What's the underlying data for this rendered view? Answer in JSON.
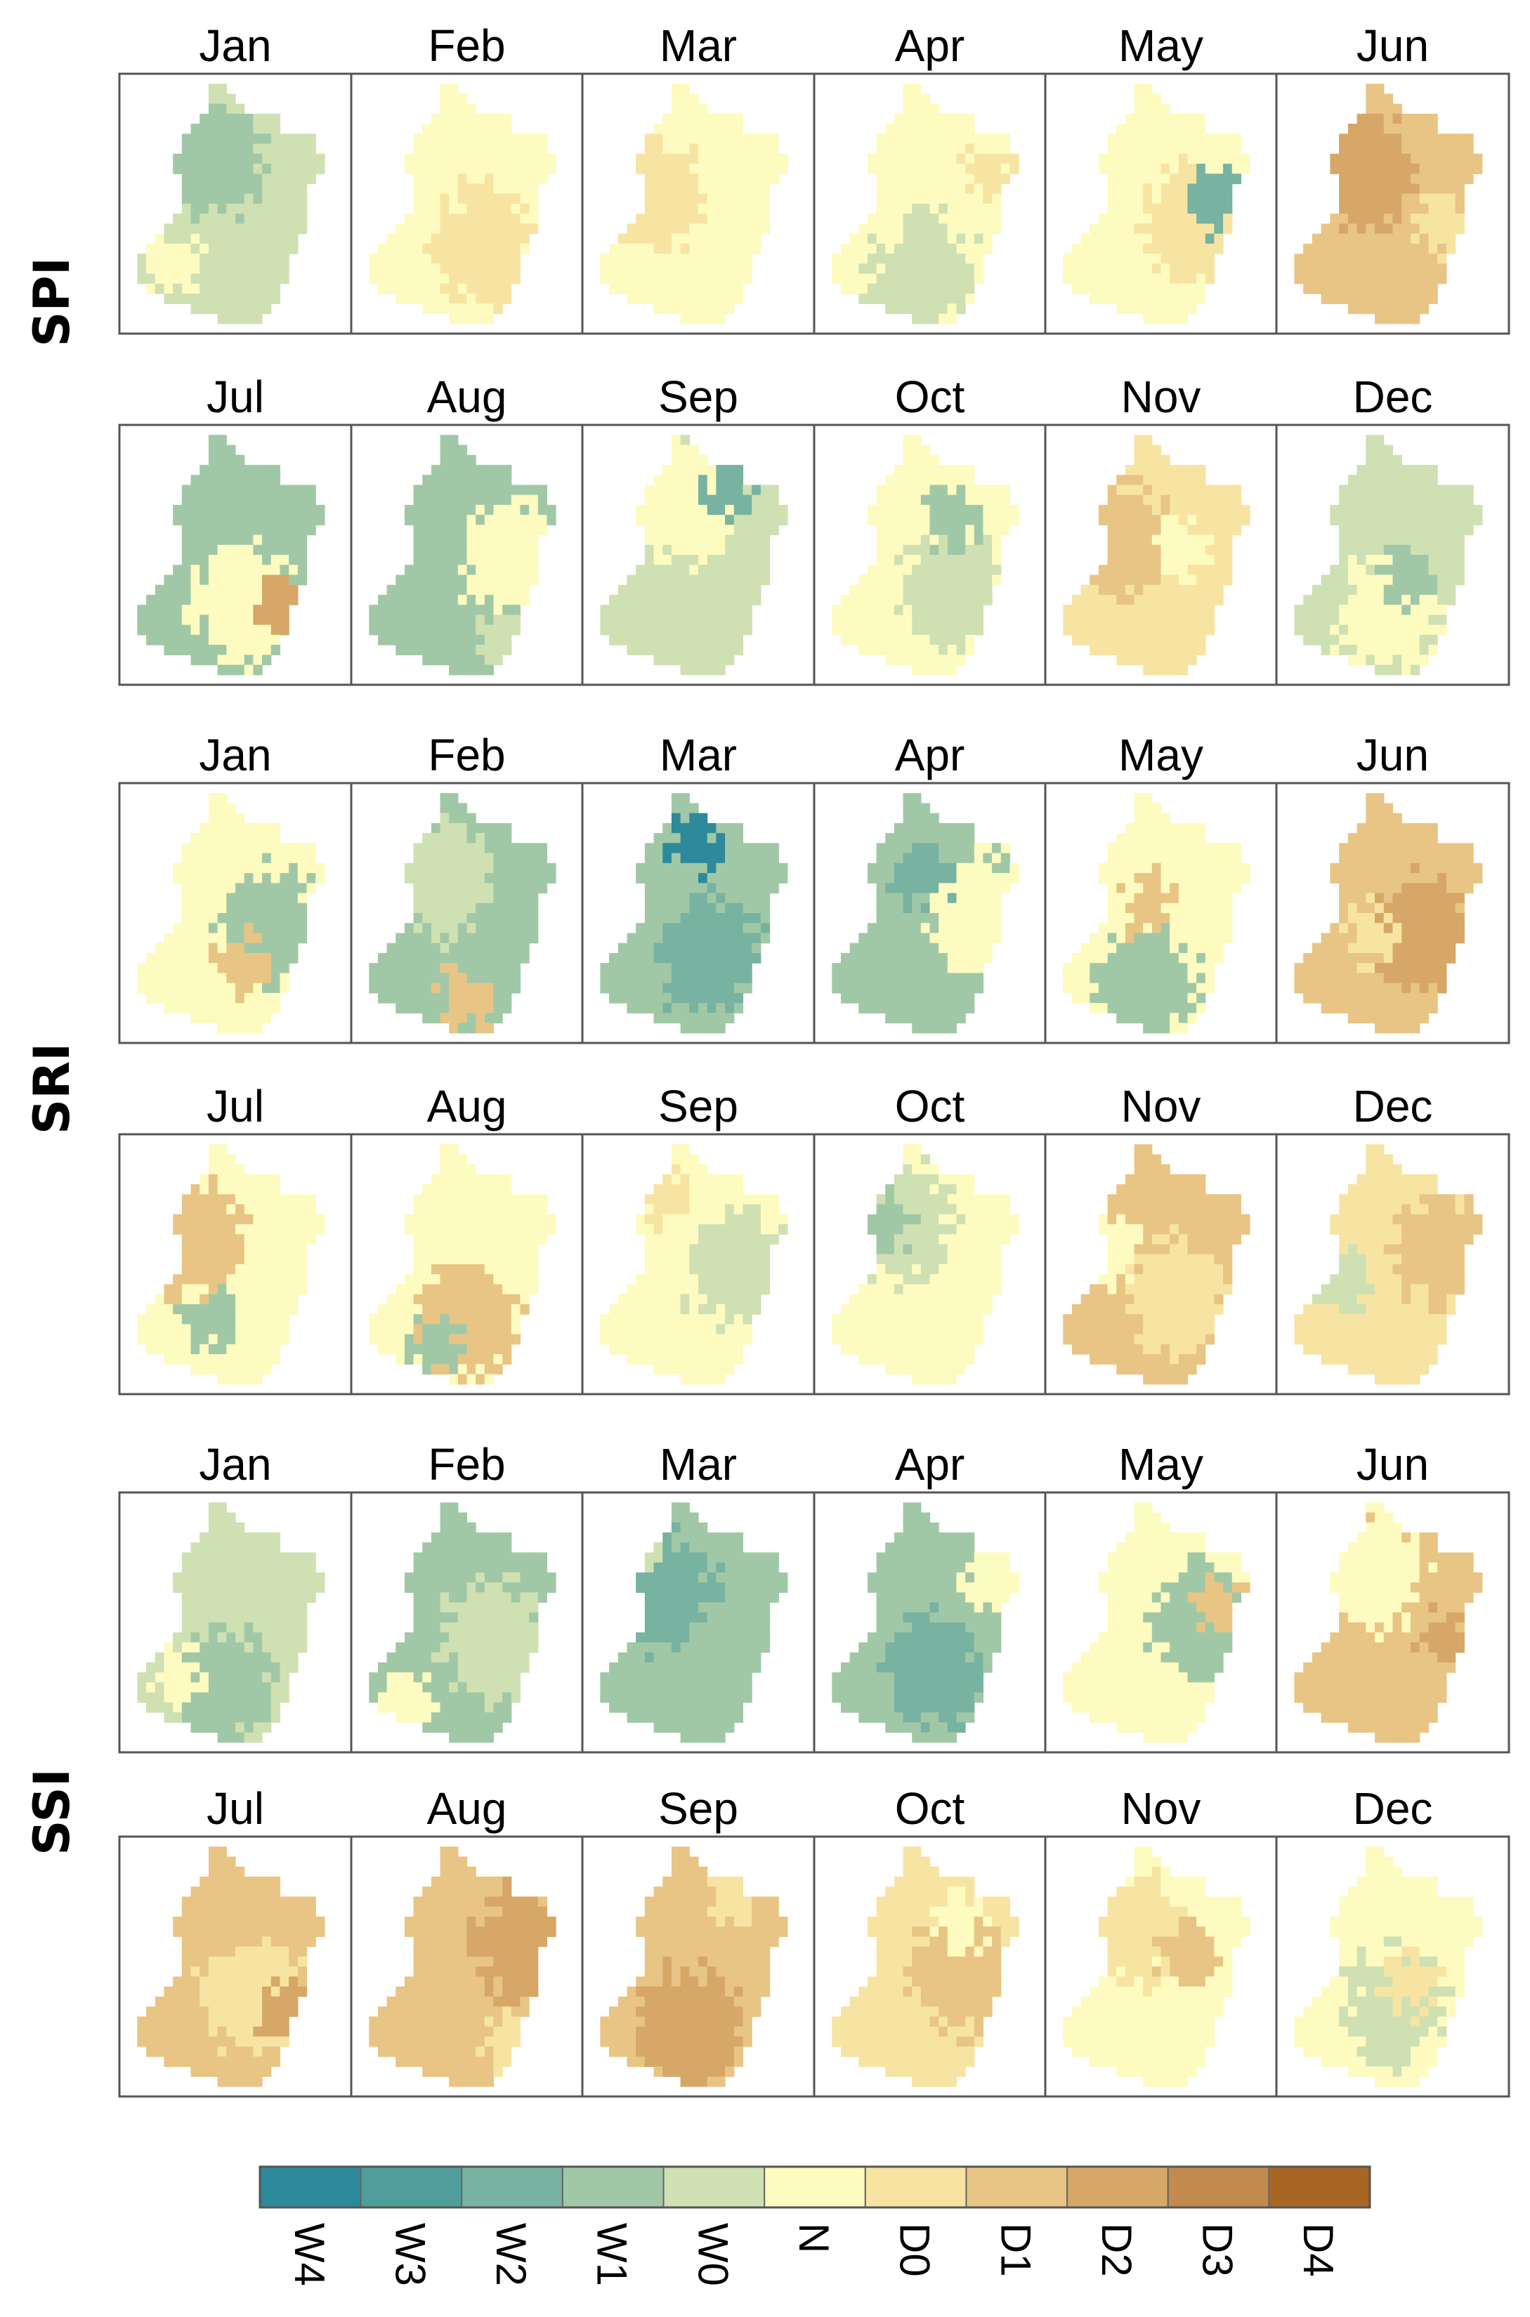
{
  "indices": [
    {
      "label": "SPI"
    },
    {
      "label": "SRI"
    },
    {
      "label": "SSI"
    }
  ],
  "months": [
    "Jan",
    "Feb",
    "Mar",
    "Apr",
    "May",
    "Jun",
    "Jul",
    "Aug",
    "Sep",
    "Oct",
    "Nov",
    "Dec"
  ],
  "legend": {
    "classes": [
      "W4",
      "W3",
      "W2",
      "W1",
      "W0",
      "N",
      "D0",
      "D1",
      "D2",
      "D3",
      "D4"
    ],
    "colors": [
      "#2c8a9a",
      "#4f9e9b",
      "#78b2a0",
      "#a1c8a6",
      "#cfe0b3",
      "#fdfbc0",
      "#f7e4a3",
      "#e8c584",
      "#d6a767",
      "#c28a4c",
      "#a86624"
    ]
  },
  "chart_data": {
    "type": "heatmap",
    "description_units": "drought class per month",
    "panels": [
      {
        "index": "SPI",
        "month": "Jan",
        "dominant": "W0",
        "secondary": "W1",
        "tertiary": "N"
      },
      {
        "index": "SPI",
        "month": "Feb",
        "dominant": "N",
        "secondary": "D0",
        "tertiary": "N"
      },
      {
        "index": "SPI",
        "month": "Mar",
        "dominant": "N",
        "secondary": "D0",
        "tertiary": "N"
      },
      {
        "index": "SPI",
        "month": "Apr",
        "dominant": "N",
        "secondary": "W0",
        "tertiary": "D0"
      },
      {
        "index": "SPI",
        "month": "May",
        "dominant": "N",
        "secondary": "D0",
        "tertiary": "W2"
      },
      {
        "index": "SPI",
        "month": "Jun",
        "dominant": "D1",
        "secondary": "D2",
        "tertiary": "D0"
      },
      {
        "index": "SPI",
        "month": "Jul",
        "dominant": "W1",
        "secondary": "N",
        "tertiary": "D2"
      },
      {
        "index": "SPI",
        "month": "Aug",
        "dominant": "W1",
        "secondary": "N",
        "tertiary": "W0"
      },
      {
        "index": "SPI",
        "month": "Sep",
        "dominant": "W0",
        "secondary": "N",
        "tertiary": "W2"
      },
      {
        "index": "SPI",
        "month": "Oct",
        "dominant": "N",
        "secondary": "W0",
        "tertiary": "W1"
      },
      {
        "index": "SPI",
        "month": "Nov",
        "dominant": "D0",
        "secondary": "D1",
        "tertiary": "N"
      },
      {
        "index": "SPI",
        "month": "Dec",
        "dominant": "W0",
        "secondary": "N",
        "tertiary": "W1"
      },
      {
        "index": "SRI",
        "month": "Jan",
        "dominant": "N",
        "secondary": "W1",
        "tertiary": "D1"
      },
      {
        "index": "SRI",
        "month": "Feb",
        "dominant": "W1",
        "secondary": "W0",
        "tertiary": "D1"
      },
      {
        "index": "SRI",
        "month": "Mar",
        "dominant": "W1",
        "secondary": "W2",
        "tertiary": "W4"
      },
      {
        "index": "SRI",
        "month": "Apr",
        "dominant": "W1",
        "secondary": "N",
        "tertiary": "W2"
      },
      {
        "index": "SRI",
        "month": "May",
        "dominant": "N",
        "secondary": "W1",
        "tertiary": "D1"
      },
      {
        "index": "SRI",
        "month": "Jun",
        "dominant": "D1",
        "secondary": "D2",
        "tertiary": "D0"
      },
      {
        "index": "SRI",
        "month": "Jul",
        "dominant": "N",
        "secondary": "D1",
        "tertiary": "W1"
      },
      {
        "index": "SRI",
        "month": "Aug",
        "dominant": "N",
        "secondary": "D1",
        "tertiary": "W1"
      },
      {
        "index": "SRI",
        "month": "Sep",
        "dominant": "N",
        "secondary": "W0",
        "tertiary": "D0"
      },
      {
        "index": "SRI",
        "month": "Oct",
        "dominant": "N",
        "secondary": "W0",
        "tertiary": "W1"
      },
      {
        "index": "SRI",
        "month": "Nov",
        "dominant": "D1",
        "secondary": "D0",
        "tertiary": "N"
      },
      {
        "index": "SRI",
        "month": "Dec",
        "dominant": "D0",
        "secondary": "D1",
        "tertiary": "W0"
      },
      {
        "index": "SSI",
        "month": "Jan",
        "dominant": "W0",
        "secondary": "W1",
        "tertiary": "N"
      },
      {
        "index": "SSI",
        "month": "Feb",
        "dominant": "W1",
        "secondary": "W0",
        "tertiary": "N"
      },
      {
        "index": "SSI",
        "month": "Mar",
        "dominant": "W1",
        "secondary": "W2",
        "tertiary": "W0"
      },
      {
        "index": "SSI",
        "month": "Apr",
        "dominant": "W1",
        "secondary": "W2",
        "tertiary": "N"
      },
      {
        "index": "SSI",
        "month": "May",
        "dominant": "N",
        "secondary": "W1",
        "tertiary": "D1"
      },
      {
        "index": "SSI",
        "month": "Jun",
        "dominant": "D1",
        "secondary": "N",
        "tertiary": "D2"
      },
      {
        "index": "SSI",
        "month": "Jul",
        "dominant": "D1",
        "secondary": "D0",
        "tertiary": "D2"
      },
      {
        "index": "SSI",
        "month": "Aug",
        "dominant": "D1",
        "secondary": "D2",
        "tertiary": "D0"
      },
      {
        "index": "SSI",
        "month": "Sep",
        "dominant": "D1",
        "secondary": "D2",
        "tertiary": "D0"
      },
      {
        "index": "SSI",
        "month": "Oct",
        "dominant": "D0",
        "secondary": "D1",
        "tertiary": "N"
      },
      {
        "index": "SSI",
        "month": "Nov",
        "dominant": "N",
        "secondary": "D0",
        "tertiary": "D1"
      },
      {
        "index": "SSI",
        "month": "Dec",
        "dominant": "N",
        "secondary": "W0",
        "tertiary": "D0"
      }
    ]
  }
}
